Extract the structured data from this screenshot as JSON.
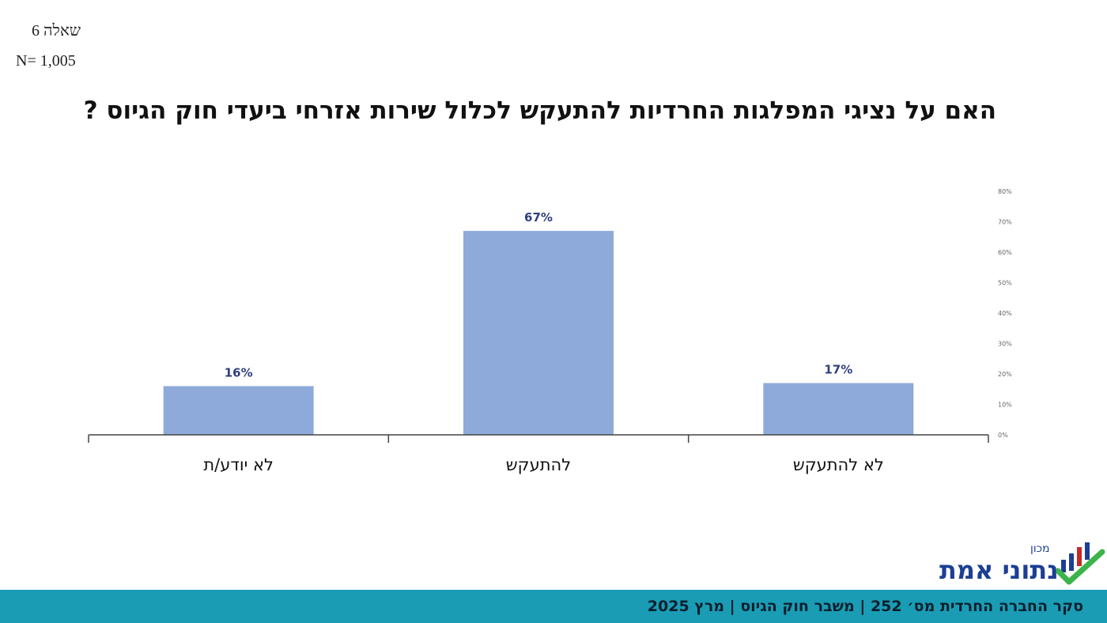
{
  "header": {
    "question_number": "שאלה 6",
    "sample_size": "N= 1,005"
  },
  "title": "האם על נציגי המפלגות החרדיות להתעקש לכלול שירות אזרחי ביעדי חוק הגיוס ?",
  "chart_data": {
    "type": "bar",
    "categories": [
      "לא יודע/ת",
      "להתעקש",
      "לא להתעקש"
    ],
    "values": [
      16,
      67,
      17
    ],
    "value_labels": [
      "16%",
      "67%",
      "17%"
    ],
    "ylim": [
      0,
      80
    ],
    "yticks": [
      0,
      10,
      20,
      30,
      40,
      50,
      60,
      70,
      80
    ],
    "ytick_labels": [
      "0%",
      "10%",
      "20%",
      "30%",
      "40%",
      "50%",
      "60%",
      "70%",
      "80%"
    ],
    "y_axis_position": "right",
    "grid": false,
    "bar_color": "#8eaadb",
    "label_color": "#2f3f7f"
  },
  "footer": {
    "text": "סקר החברה החרדית מס׳ 252 | משבר חוק הגיוס | מרץ 2025",
    "bar_color": "#1a9cb5"
  },
  "logo": {
    "small_text": "מכון",
    "main_text": "נתוני אמת",
    "color": "#1c3f94",
    "check_color": "#3cb44a"
  }
}
